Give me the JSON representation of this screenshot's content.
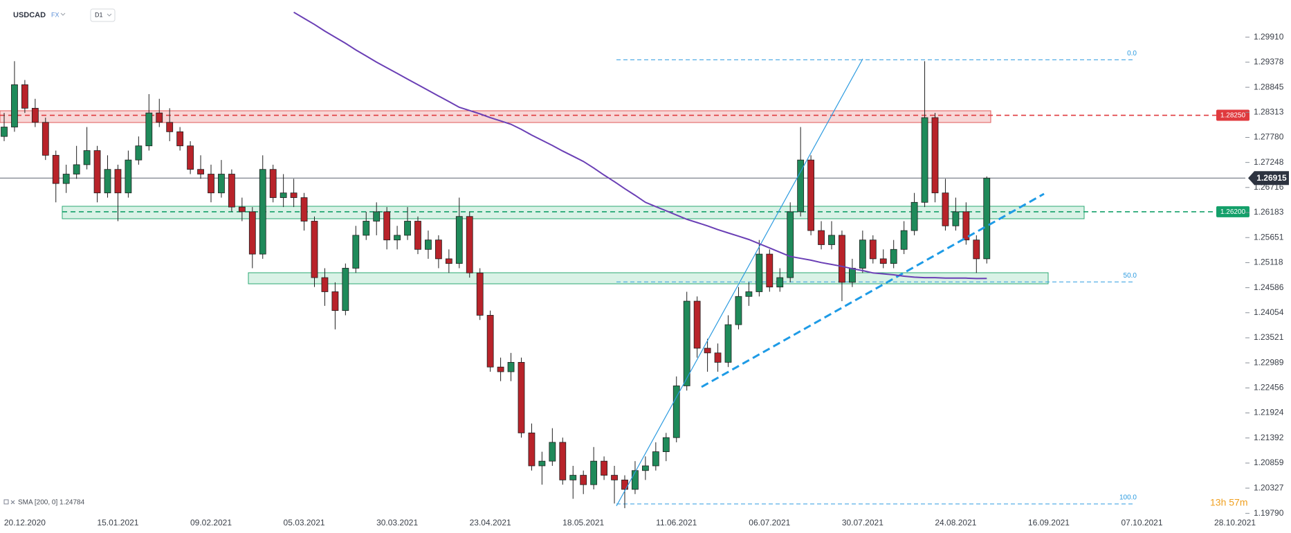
{
  "chart_data": {
    "type": "candlestick",
    "symbol": "USDCAD",
    "market": "FX",
    "interval": "D1",
    "categories": [
      null,
      null,
      "20.12.2020",
      null,
      null,
      null,
      null,
      null,
      null,
      null,
      null,
      "15.01.2021",
      null,
      null,
      null,
      null,
      null,
      null,
      null,
      null,
      "09.02.2021",
      null,
      null,
      null,
      null,
      null,
      null,
      null,
      null,
      "05.03.2021",
      null,
      null,
      null,
      null,
      null,
      null,
      null,
      null,
      "30.03.2021",
      null,
      null,
      null,
      null,
      null,
      null,
      null,
      null,
      "23.04.2021",
      null,
      null,
      null,
      null,
      null,
      null,
      null,
      null,
      "18.05.2021",
      null,
      null,
      null,
      null,
      null,
      null,
      null,
      null,
      "11.06.2021",
      null,
      null,
      null,
      null,
      null,
      null,
      null,
      null,
      "06.07.2021",
      null,
      null,
      null,
      null,
      null,
      null,
      null,
      null,
      "30.07.2021",
      null,
      null,
      null,
      null,
      null,
      null,
      null,
      null,
      "24.08.2021",
      null,
      null,
      null,
      null,
      null,
      null,
      null,
      null,
      "16.09.2021",
      null,
      null,
      null,
      null,
      null,
      null,
      null,
      null,
      "07.10.2021",
      null,
      null,
      null,
      null,
      null,
      null,
      null,
      null,
      "28.10.2021"
    ],
    "open": [
      1.278,
      1.28,
      1.289,
      1.284,
      1.281,
      1.274,
      1.268,
      1.27,
      1.272,
      1.275,
      1.266,
      1.271,
      1.266,
      1.273,
      1.276,
      1.283,
      1.281,
      1.279,
      1.276,
      1.271,
      1.27,
      1.266,
      1.27,
      1.263,
      1.262,
      1.253,
      1.271,
      1.265,
      1.266,
      1.265,
      1.26,
      1.248,
      1.245,
      1.241,
      1.25,
      1.257,
      1.26,
      1.262,
      1.256,
      1.257,
      1.26,
      1.254,
      1.256,
      1.252,
      1.251,
      1.261,
      1.249,
      1.24,
      1.229,
      1.228,
      1.23,
      1.215,
      1.208,
      1.209,
      1.213,
      1.205,
      1.206,
      1.204,
      1.209,
      1.206,
      1.205,
      1.203,
      1.207,
      1.208,
      1.211,
      1.214,
      1.225,
      1.243,
      1.233,
      1.232,
      1.23,
      1.238,
      1.244,
      1.245,
      1.253,
      1.246,
      1.248,
      1.262,
      1.273,
      1.258,
      1.255,
      1.257,
      1.247,
      1.25,
      1.256,
      1.252,
      1.251,
      1.254,
      1.258,
      1.264,
      1.282,
      1.266,
      1.259,
      1.262,
      1.256,
      1.252,
      null,
      null,
      null,
      null,
      null,
      null,
      null,
      null,
      null,
      null,
      null,
      null,
      null,
      null,
      null,
      null,
      null,
      null,
      null,
      null,
      null,
      null,
      null,
      null
    ],
    "high": [
      1.283,
      1.294,
      1.29,
      1.286,
      1.282,
      1.275,
      1.272,
      1.276,
      1.28,
      1.276,
      1.274,
      1.272,
      1.275,
      1.278,
      1.287,
      1.286,
      1.284,
      1.28,
      1.277,
      1.274,
      1.272,
      1.273,
      1.271,
      1.265,
      1.263,
      1.274,
      1.272,
      1.27,
      1.269,
      1.266,
      1.261,
      1.25,
      1.247,
      1.251,
      1.259,
      1.262,
      1.264,
      1.263,
      1.259,
      1.263,
      1.261,
      1.258,
      1.257,
      1.254,
      1.265,
      1.262,
      1.25,
      1.241,
      1.231,
      1.232,
      1.231,
      1.217,
      1.211,
      1.216,
      1.214,
      1.208,
      1.207,
      1.212,
      1.21,
      1.208,
      1.206,
      1.209,
      1.21,
      1.213,
      1.215,
      1.227,
      1.245,
      1.244,
      1.235,
      1.234,
      1.24,
      1.246,
      1.247,
      1.256,
      1.254,
      1.25,
      1.264,
      1.28,
      1.274,
      1.26,
      1.26,
      1.258,
      1.252,
      1.258,
      1.257,
      1.254,
      1.256,
      1.26,
      1.266,
      1.294,
      1.283,
      1.269,
      1.265,
      1.264,
      1.257,
      1.2695,
      null,
      null,
      null,
      null,
      null,
      null,
      null,
      null,
      null,
      null,
      null,
      null,
      null,
      null,
      null,
      null,
      null,
      null,
      null,
      null,
      null,
      null,
      null,
      null
    ],
    "low": [
      1.277,
      1.279,
      1.283,
      1.28,
      1.273,
      1.264,
      1.266,
      1.269,
      1.271,
      1.264,
      1.265,
      1.26,
      1.265,
      1.272,
      1.275,
      1.28,
      1.277,
      1.275,
      1.27,
      1.269,
      1.264,
      1.265,
      1.262,
      1.26,
      1.25,
      1.252,
      1.264,
      1.263,
      1.263,
      1.258,
      1.246,
      1.242,
      1.237,
      1.24,
      1.249,
      1.256,
      1.257,
      1.254,
      1.254,
      1.256,
      1.253,
      1.252,
      1.25,
      1.249,
      1.25,
      1.248,
      1.239,
      1.228,
      1.226,
      1.226,
      1.214,
      1.207,
      1.204,
      1.208,
      1.204,
      1.201,
      1.202,
      1.203,
      1.205,
      1.2,
      1.199,
      1.202,
      1.205,
      1.207,
      1.209,
      1.213,
      1.224,
      1.231,
      1.228,
      1.228,
      1.229,
      1.237,
      1.242,
      1.244,
      1.245,
      1.245,
      1.247,
      1.261,
      1.257,
      1.254,
      1.254,
      1.243,
      1.246,
      1.249,
      1.251,
      1.25,
      1.25,
      1.253,
      1.257,
      1.263,
      1.264,
      1.258,
      1.258,
      1.255,
      1.249,
      1.251,
      null,
      null,
      null,
      null,
      null,
      null,
      null,
      null,
      null,
      null,
      null,
      null,
      null,
      null,
      null,
      null,
      null,
      null,
      null,
      null,
      null,
      null,
      null,
      null
    ],
    "close": [
      1.28,
      1.289,
      1.284,
      1.281,
      1.274,
      1.268,
      1.27,
      1.272,
      1.275,
      1.266,
      1.271,
      1.266,
      1.273,
      1.276,
      1.283,
      1.281,
      1.279,
      1.276,
      1.271,
      1.27,
      1.266,
      1.27,
      1.263,
      1.262,
      1.253,
      1.271,
      1.265,
      1.266,
      1.265,
      1.26,
      1.248,
      1.245,
      1.241,
      1.25,
      1.257,
      1.26,
      1.262,
      1.256,
      1.257,
      1.26,
      1.254,
      1.256,
      1.252,
      1.251,
      1.261,
      1.249,
      1.24,
      1.229,
      1.228,
      1.23,
      1.215,
      1.208,
      1.209,
      1.213,
      1.205,
      1.206,
      1.204,
      1.209,
      1.206,
      1.205,
      1.203,
      1.207,
      1.208,
      1.211,
      1.214,
      1.225,
      1.243,
      1.233,
      1.232,
      1.23,
      1.238,
      1.244,
      1.245,
      1.253,
      1.246,
      1.248,
      1.262,
      1.273,
      1.258,
      1.255,
      1.257,
      1.247,
      1.25,
      1.256,
      1.252,
      1.251,
      1.254,
      1.258,
      1.264,
      1.282,
      1.266,
      1.259,
      1.262,
      1.256,
      1.252,
      1.26915,
      null,
      null,
      null,
      null,
      null,
      null,
      null,
      null,
      null,
      null,
      null,
      null,
      null,
      null,
      null,
      null,
      null,
      null,
      null,
      null,
      null,
      null,
      null,
      null
    ],
    "up_color": "#1f8a5a",
    "down_color": "#b8232a",
    "sma": {
      "legend": "SMA [200, 0] 1.24784",
      "color": "#6a3fb5",
      "values": [
        null,
        null,
        null,
        null,
        null,
        null,
        null,
        null,
        null,
        null,
        null,
        null,
        null,
        null,
        null,
        null,
        null,
        null,
        null,
        null,
        null,
        null,
        null,
        null,
        null,
        null,
        null,
        null,
        1.3044,
        1.3031,
        1.3018,
        1.3004,
        1.2991,
        1.2978,
        1.2964,
        1.2951,
        1.2938,
        1.2926,
        1.2914,
        1.2902,
        1.289,
        1.2878,
        1.2866,
        1.2854,
        1.2842,
        1.2835,
        1.2828,
        1.282,
        1.2813,
        1.2806,
        1.2795,
        1.2783,
        1.2772,
        1.2761,
        1.2749,
        1.2738,
        1.2727,
        1.2713,
        1.2698,
        1.2684,
        1.2669,
        1.2655,
        1.264,
        1.2631,
        1.2622,
        1.2613,
        1.2604,
        1.2597,
        1.259,
        1.2582,
        1.2575,
        1.2568,
        1.2561,
        1.2552,
        1.2543,
        1.2534,
        1.2525,
        1.2521,
        1.2517,
        1.2512,
        1.2508,
        1.2504,
        1.2499,
        1.2495,
        1.249,
        1.2488,
        1.2486,
        1.2483,
        1.2481,
        1.248,
        1.248,
        1.2479,
        1.2479,
        1.2479,
        1.2478,
        1.24784,
        null,
        null,
        null,
        null,
        null,
        null,
        null,
        null,
        null,
        null,
        null,
        null,
        null,
        null,
        null,
        null,
        null,
        null,
        null,
        null,
        null,
        null,
        null,
        null
      ]
    },
    "ylim": [
      1.1977,
      1.307
    ],
    "yticks": [
      {
        "value": 1.2991,
        "label": "1.29910"
      },
      1.29378,
      1.28845,
      1.28313,
      {
        "value": 1.2778,
        "label": "1.27780"
      },
      1.27248,
      1.26716,
      1.26183,
      1.25651,
      1.25118,
      1.24586,
      1.24054,
      1.23521,
      1.22989,
      1.22456,
      1.21924,
      1.21392,
      1.20859,
      1.20327,
      {
        "value": 1.1979,
        "label": "1.19790"
      }
    ],
    "levels": [
      {
        "value": 1.2825,
        "label": "1.28250",
        "color": "#e03a3e"
      },
      {
        "value": 1.262,
        "label": "1.26200",
        "color": "#14a06a"
      }
    ],
    "last_price": {
      "value": 1.26915,
      "label": "1.26915"
    },
    "fib_levels": [
      {
        "value": 1.2943,
        "label": "0.0"
      },
      {
        "value": 1.2471,
        "label": "50.0"
      },
      {
        "value": 1.1999,
        "label": "100.0"
      }
    ],
    "countdown": "13h 57m"
  }
}
